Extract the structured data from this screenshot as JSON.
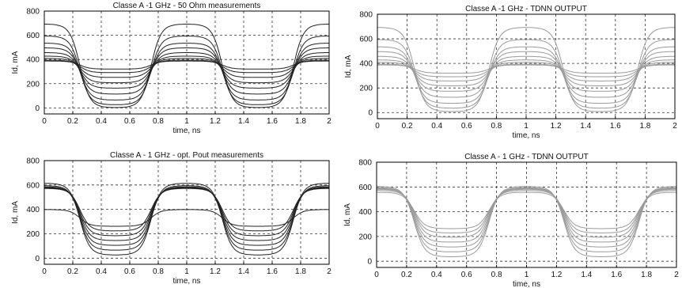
{
  "chart_data": [
    {
      "type": "line",
      "title": "Classe A -1 GHz - 50 Ohm measurements",
      "xlabel": "time, ns",
      "ylabel": "Id, mA",
      "xlim": [
        0,
        2
      ],
      "ylim": [
        -50,
        800
      ],
      "xticks": [
        "0",
        "0.2",
        "0.4",
        "0.6",
        "0.8",
        "1",
        "1.2",
        "1.4",
        "1.6",
        "1.8",
        "2"
      ],
      "yticks": [
        "0",
        "200",
        "400",
        "600",
        "800"
      ],
      "grid": true,
      "line_color": "#222222",
      "series": [
        {
          "peak": 700,
          "valley": -5
        },
        {
          "peak": 600,
          "valley": 20
        },
        {
          "peak": 540,
          "valley": 60
        },
        {
          "peak": 500,
          "valley": 110
        },
        {
          "peak": 460,
          "valley": 160
        },
        {
          "peak": 430,
          "valley": 205
        },
        {
          "peak": 410,
          "valley": 250
        },
        {
          "peak": 395,
          "valley": 290
        },
        {
          "peak": 388,
          "valley": 320
        }
      ]
    },
    {
      "type": "line",
      "title": "Classe A -1 GHz - TDNN OUTPUT",
      "xlabel": "time, ns",
      "ylabel": "Id, mA",
      "xlim": [
        0,
        2
      ],
      "ylim": [
        -50,
        800
      ],
      "xticks": [
        "0",
        "0.2",
        "0.4",
        "0.6",
        "0.8",
        "1",
        "1.2",
        "1.4",
        "1.6",
        "1.8",
        "2"
      ],
      "yticks": [
        "0",
        "200",
        "400",
        "600",
        "800"
      ],
      "grid": true,
      "line_color": "#9a9a9a",
      "series": [
        {
          "peak": 700,
          "valley": 0
        },
        {
          "peak": 600,
          "valley": 30
        },
        {
          "peak": 540,
          "valley": 70
        },
        {
          "peak": 500,
          "valley": 120
        },
        {
          "peak": 460,
          "valley": 170
        },
        {
          "peak": 430,
          "valley": 215
        },
        {
          "peak": 410,
          "valley": 255
        },
        {
          "peak": 395,
          "valley": 290
        },
        {
          "peak": 388,
          "valley": 320
        }
      ]
    },
    {
      "type": "line",
      "title": "Classe A - 1 GHz - opt. Pout measurements",
      "xlabel": "time, ns",
      "ylabel": "Id, mA",
      "xlim": [
        0,
        2
      ],
      "ylim": [
        -50,
        800
      ],
      "xticks": [
        "0",
        "0.2",
        "0.4",
        "0.6",
        "0.8",
        "1",
        "1.2",
        "1.4",
        "1.6",
        "1.8",
        "2"
      ],
      "yticks": [
        "0",
        "200",
        "400",
        "600",
        "800"
      ],
      "grid": true,
      "line_color": "#222222",
      "series": [
        {
          "peak": 620,
          "valley": 20
        },
        {
          "peak": 600,
          "valley": 60
        },
        {
          "peak": 590,
          "valley": 100
        },
        {
          "peak": 585,
          "valley": 140
        },
        {
          "peak": 580,
          "valley": 180
        },
        {
          "peak": 575,
          "valley": 220
        },
        {
          "peak": 400,
          "valley": 260
        }
      ]
    },
    {
      "type": "line",
      "title": "Classe A - 1 GHz - TDNN OUTPUT",
      "xlabel": "time, ns",
      "ylabel": "Id, mA",
      "xlim": [
        0,
        2
      ],
      "ylim": [
        -50,
        800
      ],
      "xticks": [
        "0",
        "0.2",
        "0.4",
        "0.6",
        "0.8",
        "1",
        "1.2",
        "1.4",
        "1.6",
        "1.8",
        "2"
      ],
      "yticks": [
        "0",
        "200",
        "400",
        "600",
        "800"
      ],
      "grid": true,
      "line_color": "#9a9a9a",
      "series": [
        {
          "peak": 610,
          "valley": 30
        },
        {
          "peak": 600,
          "valley": 70
        },
        {
          "peak": 595,
          "valley": 110
        },
        {
          "peak": 590,
          "valley": 150
        },
        {
          "peak": 585,
          "valley": 190
        },
        {
          "peak": 575,
          "valley": 225
        },
        {
          "peak": 560,
          "valley": 260
        }
      ]
    }
  ]
}
